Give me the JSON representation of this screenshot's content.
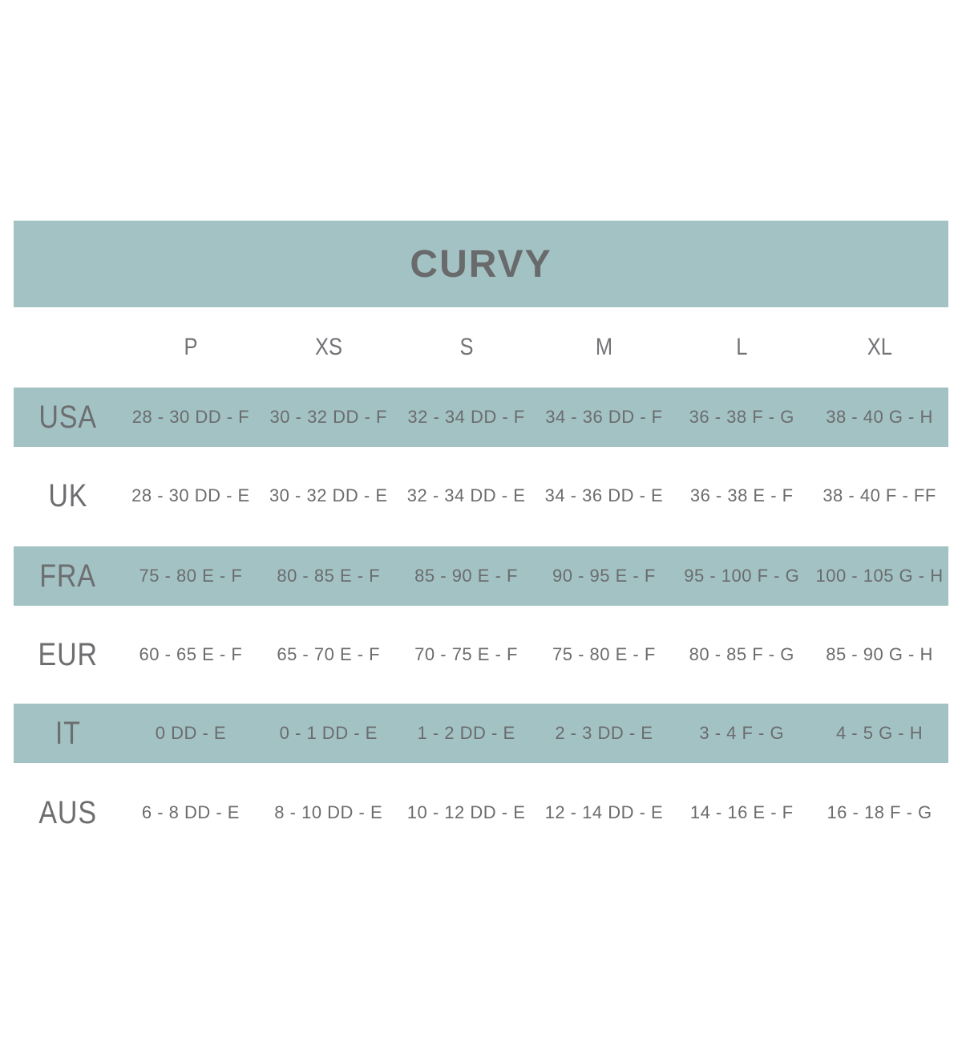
{
  "title": "CURVY",
  "colors": {
    "band_teal": "#a3c2c4",
    "title_text": "#696a6b",
    "body_text": "#6b6c6e",
    "background": "#ffffff"
  },
  "chart_data": {
    "type": "table",
    "title": "CURVY",
    "columns": [
      "",
      "P",
      "XS",
      "S",
      "M",
      "L",
      "XL"
    ],
    "rows": [
      {
        "region": "USA",
        "shaded": true,
        "values": [
          "28 - 30 DD - F",
          "30 - 32 DD - F",
          "32 - 34 DD - F",
          "34 - 36 DD - F",
          "36 - 38 F - G",
          "38 - 40 G - H"
        ]
      },
      {
        "region": "UK",
        "shaded": false,
        "values": [
          "28 - 30 DD - E",
          "30 - 32 DD - E",
          "32 - 34 DD - E",
          "34 - 36 DD - E",
          "36 - 38 E - F",
          "38 - 40 F - FF"
        ]
      },
      {
        "region": "FRA",
        "shaded": true,
        "values": [
          "75 - 80 E - F",
          "80 - 85 E - F",
          "85 - 90 E - F",
          "90 - 95 E - F",
          "95 - 100 F - G",
          "100 - 105 G - H"
        ]
      },
      {
        "region": "EUR",
        "shaded": false,
        "values": [
          "60 - 65 E - F",
          "65 - 70 E - F",
          "70 - 75 E - F",
          "75 - 80 E - F",
          "80 - 85 F - G",
          "85 - 90 G - H"
        ]
      },
      {
        "region": "IT",
        "shaded": true,
        "values": [
          "0 DD - E",
          "0 - 1 DD - E",
          "1 - 2 DD - E",
          "2 - 3 DD - E",
          "3 - 4 F - G",
          "4 - 5 G - H"
        ]
      },
      {
        "region": "AUS",
        "shaded": false,
        "values": [
          "6 - 8 DD - E",
          "8 - 10 DD - E",
          "10 - 12 DD - E",
          "12 - 14 DD - E",
          "14 - 16 E - F",
          "16 - 18 F - G"
        ]
      }
    ]
  }
}
